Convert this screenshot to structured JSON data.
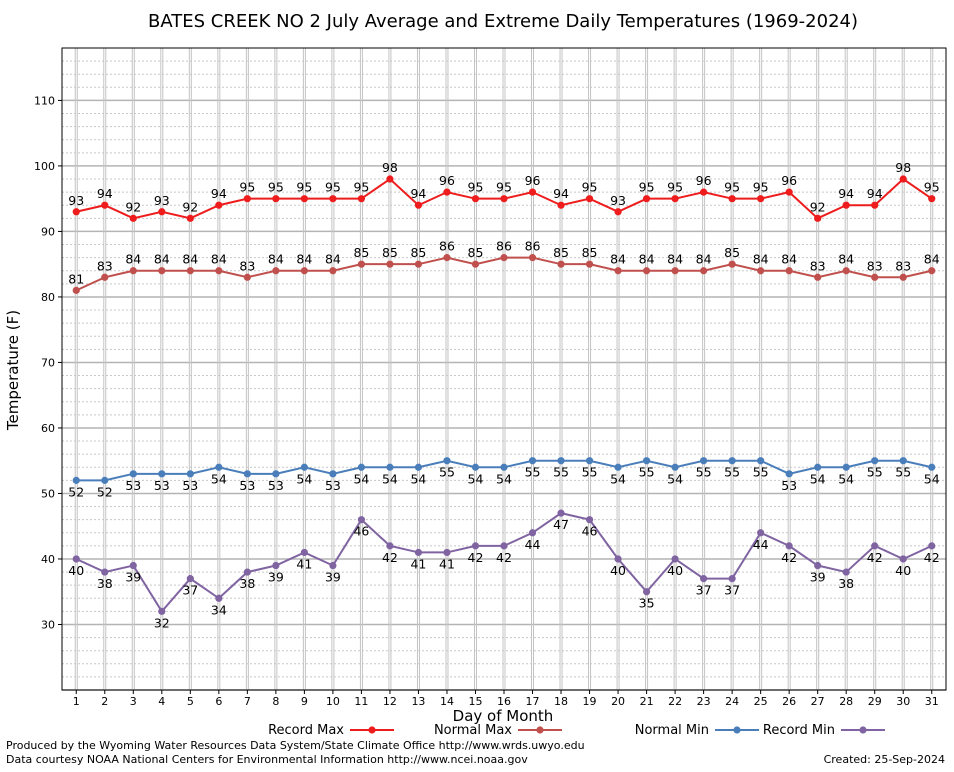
{
  "chart_data": {
    "type": "line",
    "title": "BATES CREEK NO 2 July Average and Extreme Daily Temperatures (1969-2024)",
    "xlabel": "Day of Month",
    "ylabel": "Temperature (F)",
    "x": [
      1,
      2,
      3,
      4,
      5,
      6,
      7,
      8,
      9,
      10,
      11,
      12,
      13,
      14,
      15,
      16,
      17,
      18,
      19,
      20,
      21,
      22,
      23,
      24,
      25,
      26,
      27,
      28,
      29,
      30,
      31
    ],
    "xlim": [
      0.5,
      31.5
    ],
    "ylim": [
      20,
      118
    ],
    "yticks": [
      30,
      40,
      50,
      60,
      70,
      80,
      90,
      100,
      110
    ],
    "grid": true,
    "legend_position": "bottom",
    "series": [
      {
        "name": "Record Max",
        "color": "#ee1c1c",
        "label_side": "above",
        "values": [
          93,
          94,
          92,
          93,
          92,
          94,
          95,
          95,
          95,
          95,
          95,
          98,
          94,
          96,
          95,
          95,
          96,
          94,
          95,
          93,
          95,
          95,
          96,
          95,
          95,
          96,
          92,
          94,
          94,
          98,
          95
        ]
      },
      {
        "name": "Normal Max",
        "color": "#c0504d",
        "label_side": "above",
        "values": [
          81,
          83,
          84,
          84,
          84,
          84,
          83,
          84,
          84,
          84,
          85,
          85,
          85,
          86,
          85,
          86,
          86,
          85,
          85,
          84,
          84,
          84,
          84,
          85,
          84,
          84,
          83,
          84,
          83,
          83,
          84
        ]
      },
      {
        "name": "Normal Min",
        "color": "#4a7ebb",
        "label_side": "below",
        "values": [
          52,
          52,
          53,
          53,
          53,
          54,
          53,
          53,
          54,
          53,
          54,
          54,
          54,
          55,
          54,
          54,
          55,
          55,
          55,
          54,
          55,
          54,
          55,
          55,
          55,
          53,
          54,
          54,
          55,
          55,
          54
        ]
      },
      {
        "name": "Record Min",
        "color": "#8064a2",
        "label_side": "below",
        "values": [
          40,
          38,
          39,
          32,
          37,
          34,
          38,
          39,
          41,
          39,
          46,
          42,
          41,
          41,
          42,
          42,
          44,
          47,
          46,
          40,
          35,
          40,
          37,
          37,
          44,
          42,
          39,
          38,
          42,
          40,
          42
        ]
      }
    ]
  },
  "footer": {
    "line1": "Produced by the Wyoming Water Resources Data System/State Climate Office http://www.wrds.uwyo.edu",
    "line2": "Data courtesy NOAA National Centers for Environmental Information http://www.ncei.noaa.gov",
    "created": "Created: 25-Sep-2024"
  }
}
